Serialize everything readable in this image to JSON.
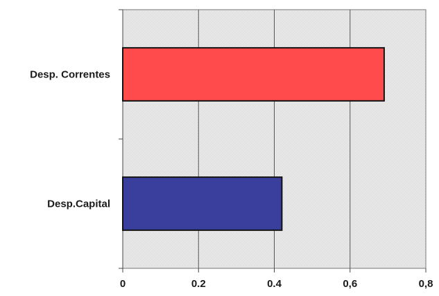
{
  "chart_data": {
    "type": "bar",
    "orientation": "horizontal",
    "categories": [
      "Desp. Correntes",
      "Desp.Capital"
    ],
    "values": [
      0.69,
      0.42
    ],
    "colors": [
      "#ff4b4b",
      "#3a3f9e"
    ],
    "x_ticks": [
      "0",
      "0.2",
      "0.4",
      "0,6",
      "0,8"
    ],
    "xlim": [
      0,
      0.8
    ],
    "grid": true,
    "legend": false,
    "title": "",
    "xlabel": "",
    "ylabel": ""
  }
}
